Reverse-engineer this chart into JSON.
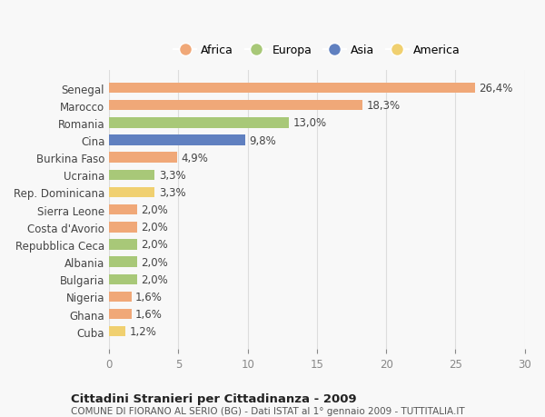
{
  "countries": [
    "Senegal",
    "Marocco",
    "Romania",
    "Cina",
    "Burkina Faso",
    "Ucraina",
    "Rep. Dominicana",
    "Sierra Leone",
    "Costa d'Avorio",
    "Repubblica Ceca",
    "Albania",
    "Bulgaria",
    "Nigeria",
    "Ghana",
    "Cuba"
  ],
  "values": [
    26.4,
    18.3,
    13.0,
    9.8,
    4.9,
    3.3,
    3.3,
    2.0,
    2.0,
    2.0,
    2.0,
    2.0,
    1.6,
    1.6,
    1.2
  ],
  "labels": [
    "26,4%",
    "18,3%",
    "13,0%",
    "9,8%",
    "4,9%",
    "3,3%",
    "3,3%",
    "2,0%",
    "2,0%",
    "2,0%",
    "2,0%",
    "2,0%",
    "1,6%",
    "1,6%",
    "1,2%"
  ],
  "continents": [
    "Africa",
    "Africa",
    "Europa",
    "Asia",
    "Africa",
    "Europa",
    "America",
    "Africa",
    "Africa",
    "Europa",
    "Europa",
    "Europa",
    "Africa",
    "Africa",
    "America"
  ],
  "continent_colors": {
    "Africa": "#F0A878",
    "Europa": "#A8C878",
    "Asia": "#6080C0",
    "America": "#F0D070"
  },
  "legend_order": [
    "Africa",
    "Europa",
    "Asia",
    "America"
  ],
  "title": "Cittadini Stranieri per Cittadinanza - 2009",
  "subtitle": "COMUNE DI FIORANO AL SERIO (BG) - Dati ISTAT al 1° gennaio 2009 - TUTTITALIA.IT",
  "xlim": [
    0,
    30
  ],
  "xticks": [
    0,
    5,
    10,
    15,
    20,
    25,
    30
  ],
  "background_color": "#f8f8f8",
  "grid_color": "#dddddd"
}
